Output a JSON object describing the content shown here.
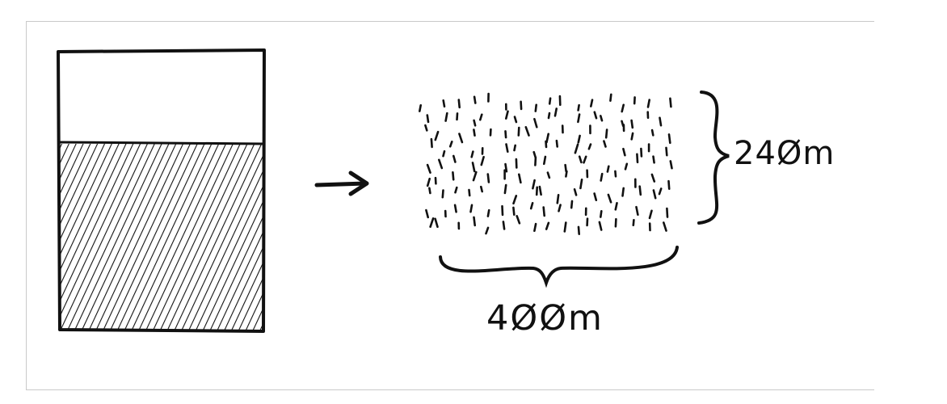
{
  "diagram": {
    "colors": {
      "ink": "#111111",
      "frame": "#c9c9c9",
      "background": "#ffffff"
    },
    "container": {
      "icon": "glass-container-icon",
      "filled_fraction": 0.6
    },
    "arrow": {
      "icon": "right-arrow-icon"
    },
    "spread": {
      "icon": "scattered-particles-icon"
    },
    "labels": {
      "height": "24Øm",
      "width": "4ØØm"
    }
  }
}
